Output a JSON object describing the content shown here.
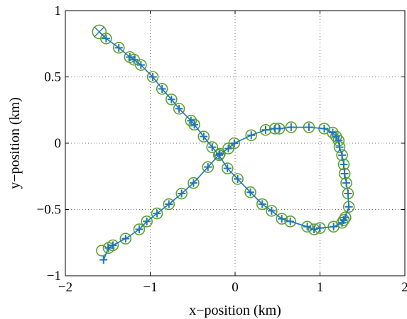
{
  "chart_data": {
    "type": "scatter",
    "title": "",
    "xlabel": "x−position (km)",
    "ylabel": "y−position (km)",
    "xlim": [
      -2,
      2
    ],
    "ylim": [
      -1,
      1
    ],
    "xticks": [
      -2,
      -1,
      0,
      1,
      2
    ],
    "xtick_labels": [
      "−2",
      "−1",
      "0",
      "1",
      "2"
    ],
    "yticks": [
      -1,
      -0.5,
      0,
      0.5,
      1
    ],
    "ytick_labels": [
      "−1",
      "−0.5",
      "0",
      "0.5",
      "1"
    ],
    "grid": true,
    "colors": {
      "track": "#1f77b4",
      "estimate": "#5fa030",
      "axes": "#000000",
      "grid": "#444444"
    },
    "start_marker": {
      "symbol": "circle-x",
      "x": -1.6,
      "y": 0.84
    },
    "series": [
      {
        "marker": "circle",
        "points": [
          [
            -1.52,
            0.79
          ],
          [
            -1.37,
            0.72
          ],
          [
            -1.24,
            0.65
          ],
          [
            -1.19,
            0.63
          ],
          [
            -1.11,
            0.59
          ],
          [
            -0.97,
            0.5
          ],
          [
            -0.86,
            0.41
          ],
          [
            -0.75,
            0.33
          ],
          [
            -0.66,
            0.26
          ],
          [
            -0.52,
            0.17
          ],
          [
            -0.48,
            0.14
          ],
          [
            -0.37,
            0.05
          ],
          [
            -0.27,
            -0.03
          ],
          [
            -0.19,
            -0.09
          ],
          [
            -0.09,
            -0.19
          ],
          [
            0.03,
            -0.27
          ],
          [
            0.18,
            -0.37
          ],
          [
            0.32,
            -0.46
          ],
          [
            0.43,
            -0.51
          ],
          [
            0.55,
            -0.57
          ],
          [
            0.65,
            -0.59
          ],
          [
            0.85,
            -0.63
          ],
          [
            0.93,
            -0.65
          ],
          [
            1.0,
            -0.64
          ],
          [
            1.16,
            -0.63
          ],
          [
            1.26,
            -0.6
          ],
          [
            1.28,
            -0.58
          ],
          [
            1.3,
            -0.56
          ],
          [
            1.34,
            -0.48
          ],
          [
            1.33,
            -0.38
          ],
          [
            1.31,
            -0.3
          ],
          [
            1.29,
            -0.23
          ],
          [
            1.28,
            -0.16
          ],
          [
            1.26,
            -0.09
          ],
          [
            1.23,
            -0.03
          ],
          [
            1.22,
            0.02
          ],
          [
            1.19,
            0.05
          ],
          [
            1.15,
            0.08
          ],
          [
            1.05,
            0.11
          ],
          [
            0.87,
            0.12
          ],
          [
            0.66,
            0.12
          ],
          [
            0.52,
            0.11
          ],
          [
            0.47,
            0.11
          ],
          [
            0.36,
            0.1
          ],
          [
            0.19,
            0.06
          ],
          [
            -0.01,
            0.0
          ],
          [
            -0.08,
            -0.04
          ],
          [
            -0.18,
            -0.08
          ],
          [
            -0.32,
            -0.18
          ],
          [
            -0.49,
            -0.3
          ],
          [
            -0.63,
            -0.38
          ],
          [
            -0.78,
            -0.46
          ],
          [
            -0.92,
            -0.53
          ],
          [
            -1.04,
            -0.59
          ],
          [
            -1.13,
            -0.65
          ],
          [
            -1.29,
            -0.72
          ],
          [
            -1.44,
            -0.77
          ],
          [
            -1.49,
            -0.79
          ],
          [
            -1.57,
            -0.81
          ]
        ]
      },
      {
        "marker": "plus-line",
        "points": [
          [
            -1.6,
            0.84
          ],
          [
            -1.52,
            0.79
          ],
          [
            -1.37,
            0.72
          ],
          [
            -1.24,
            0.65
          ],
          [
            -1.19,
            0.63
          ],
          [
            -1.11,
            0.59
          ],
          [
            -0.97,
            0.5
          ],
          [
            -0.86,
            0.41
          ],
          [
            -0.75,
            0.33
          ],
          [
            -0.66,
            0.26
          ],
          [
            -0.52,
            0.17
          ],
          [
            -0.48,
            0.14
          ],
          [
            -0.37,
            0.05
          ],
          [
            -0.27,
            -0.03
          ],
          [
            -0.19,
            -0.09
          ],
          [
            -0.09,
            -0.19
          ],
          [
            0.03,
            -0.27
          ],
          [
            0.18,
            -0.37
          ],
          [
            0.32,
            -0.46
          ],
          [
            0.43,
            -0.51
          ],
          [
            0.55,
            -0.57
          ],
          [
            0.65,
            -0.59
          ],
          [
            0.85,
            -0.63
          ],
          [
            0.93,
            -0.65
          ],
          [
            1.0,
            -0.64
          ],
          [
            1.16,
            -0.63
          ],
          [
            1.26,
            -0.6
          ],
          [
            1.28,
            -0.58
          ],
          [
            1.3,
            -0.56
          ],
          [
            1.34,
            -0.48
          ],
          [
            1.33,
            -0.38
          ],
          [
            1.31,
            -0.3
          ],
          [
            1.29,
            -0.23
          ],
          [
            1.28,
            -0.16
          ],
          [
            1.26,
            -0.09
          ],
          [
            1.23,
            -0.03
          ],
          [
            1.22,
            0.02
          ],
          [
            1.19,
            0.05
          ],
          [
            1.15,
            0.08
          ],
          [
            1.05,
            0.11
          ],
          [
            0.87,
            0.12
          ],
          [
            0.66,
            0.12
          ],
          [
            0.52,
            0.11
          ],
          [
            0.47,
            0.11
          ],
          [
            0.36,
            0.1
          ],
          [
            0.19,
            0.06
          ],
          [
            -0.01,
            0.0
          ],
          [
            -0.08,
            -0.04
          ],
          [
            -0.18,
            -0.08
          ],
          [
            -0.32,
            -0.18
          ],
          [
            -0.49,
            -0.3
          ],
          [
            -0.63,
            -0.38
          ],
          [
            -0.78,
            -0.46
          ],
          [
            -0.92,
            -0.53
          ],
          [
            -1.04,
            -0.59
          ],
          [
            -1.13,
            -0.65
          ],
          [
            -1.29,
            -0.72
          ],
          [
            -1.44,
            -0.77
          ],
          [
            -1.49,
            -0.79
          ],
          [
            -1.55,
            -0.88
          ]
        ]
      }
    ]
  }
}
